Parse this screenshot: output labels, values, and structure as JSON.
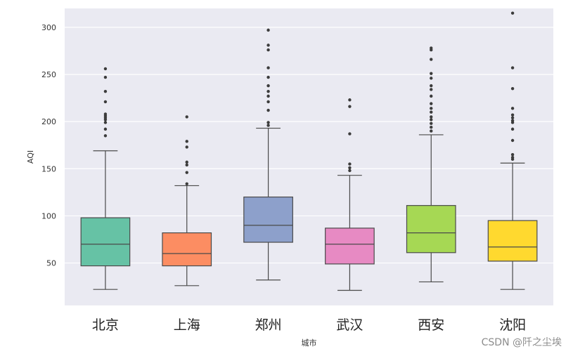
{
  "chart_data": {
    "type": "box",
    "xlabel": "城市",
    "ylabel": "AQI",
    "ylim": [
      5,
      320
    ],
    "yticks": [
      50,
      100,
      150,
      200,
      250,
      300
    ],
    "grid": true,
    "colors": [
      "#66c2a5",
      "#fc8d62",
      "#8da0cb",
      "#e78ac3",
      "#a6d854",
      "#ffd92f"
    ],
    "categories": [
      "北京",
      "上海",
      "郑州",
      "武汉",
      "西安",
      "沈阳"
    ],
    "boxes": [
      {
        "whisker_low": 22,
        "q1": 47,
        "median": 70,
        "q3": 98,
        "whisker_high": 169,
        "outliers": [
          185,
          192,
          199,
          202,
          204,
          206,
          208,
          221,
          232,
          247,
          256
        ]
      },
      {
        "whisker_low": 26,
        "q1": 47,
        "median": 60,
        "q3": 82,
        "whisker_high": 132,
        "outliers": [
          134,
          146,
          154,
          157,
          173,
          179,
          205
        ]
      },
      {
        "whisker_low": 32,
        "q1": 72,
        "median": 90,
        "q3": 120,
        "whisker_high": 193,
        "outliers": [
          196,
          199,
          212,
          221,
          227,
          232,
          238,
          247,
          257,
          276,
          281,
          297
        ]
      },
      {
        "whisker_low": 21,
        "q1": 49,
        "median": 70,
        "q3": 87,
        "whisker_high": 143,
        "outliers": [
          148,
          151,
          155,
          187,
          216,
          223
        ]
      },
      {
        "whisker_low": 30,
        "q1": 61,
        "median": 82,
        "q3": 111,
        "whisker_high": 186,
        "outliers": [
          190,
          194,
          198,
          202,
          205,
          210,
          214,
          219,
          227,
          234,
          238,
          246,
          251,
          266,
          276,
          278
        ]
      },
      {
        "whisker_low": 22,
        "q1": 52,
        "median": 67,
        "q3": 95,
        "whisker_high": 156,
        "outliers": [
          160,
          162,
          165,
          180,
          192,
          199,
          201,
          204,
          207,
          214,
          235,
          257,
          315
        ]
      }
    ]
  },
  "watermark": "CSDN @阡之尘埃"
}
